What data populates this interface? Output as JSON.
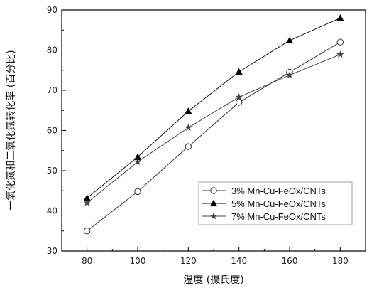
{
  "chart_data": {
    "type": "line",
    "title": "",
    "xlabel": "温度 (摄氏度)",
    "ylabel": "一氧化氮和二氧化氮转化率 (百分比)",
    "x": [
      80,
      100,
      120,
      140,
      160,
      180
    ],
    "xlim": [
      70,
      190
    ],
    "ylim": [
      30,
      90
    ],
    "xticks": [
      "80",
      "100",
      "120",
      "140",
      "160",
      "180"
    ],
    "yticks": [
      "30",
      "40",
      "50",
      "60",
      "70",
      "80",
      "90"
    ],
    "grid": false,
    "legend_position": "bottom-right",
    "series": [
      {
        "name": "3% Mn-Cu-FeOx/CNTs",
        "marker": "open-circle",
        "color": "#333333",
        "values": [
          35.0,
          44.8,
          56.0,
          67.0,
          74.5,
          82.0
        ]
      },
      {
        "name": "5% Mn-Cu-FeOx/CNTs",
        "marker": "filled-triangle",
        "color": "#111111",
        "values": [
          43.2,
          53.4,
          64.8,
          74.6,
          82.4,
          88.0
        ]
      },
      {
        "name": "7% Mn-Cu-FeOx/CNTs",
        "marker": "filled-star",
        "color": "#444444",
        "values": [
          42.0,
          52.2,
          60.7,
          68.3,
          73.8,
          78.9
        ]
      }
    ]
  }
}
